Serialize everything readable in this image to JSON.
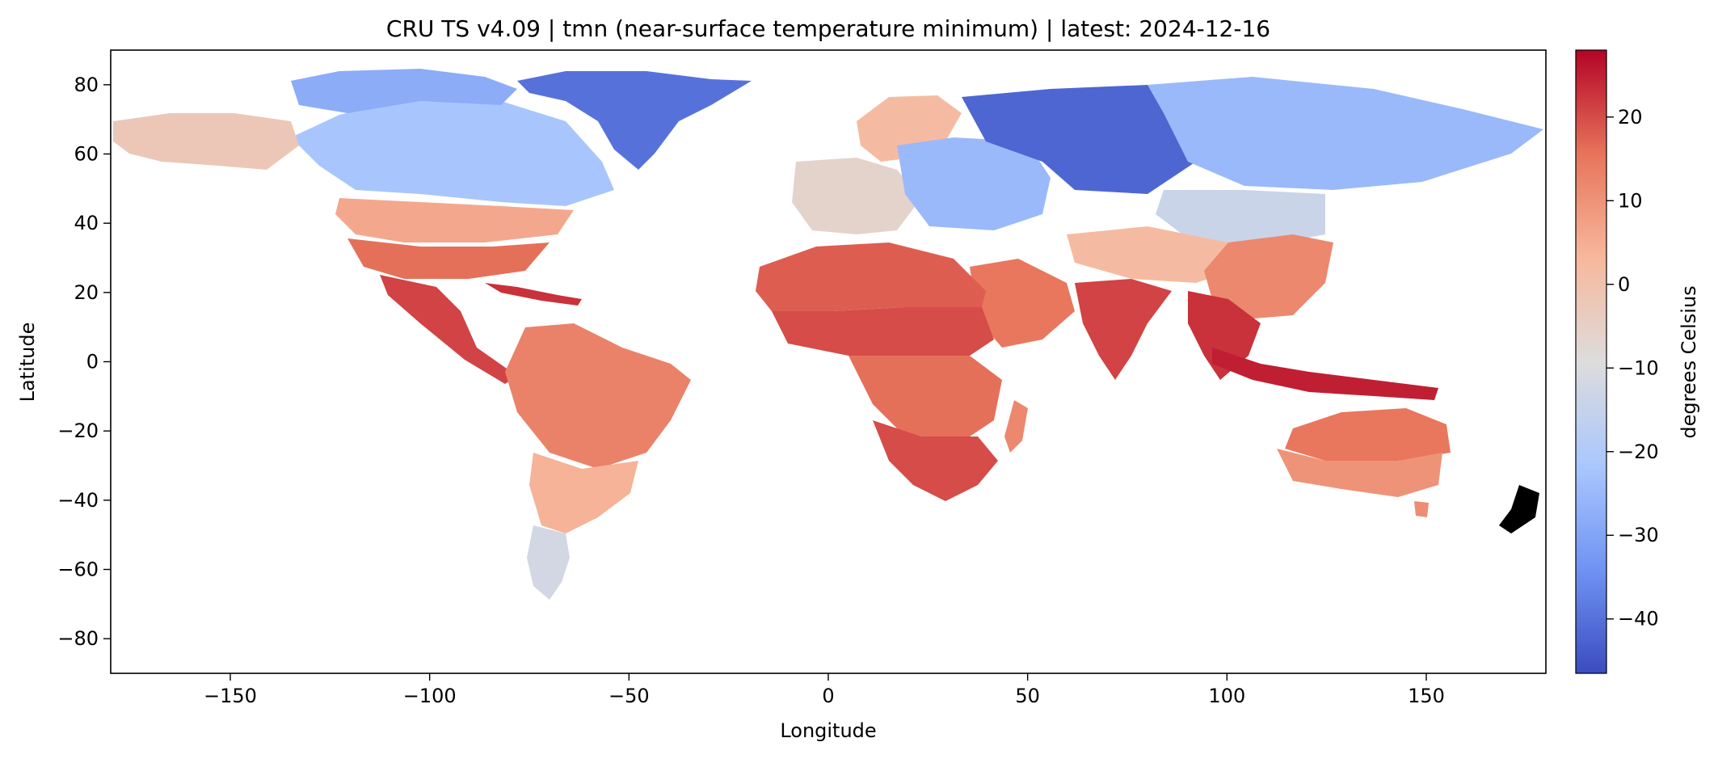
{
  "chart_data": {
    "type": "heatmap",
    "title": "CRU TS v4.09 | tmn (near-surface temperature minimum) | latest: 2024-12-16",
    "xlabel": "Longitude",
    "ylabel": "Latitude",
    "xlim": [
      -180,
      180
    ],
    "ylim": [
      -90,
      90
    ],
    "xticks": [
      -150,
      -100,
      -50,
      0,
      50,
      100,
      150
    ],
    "xtick_labels": [
      "−150",
      "−100",
      "−50",
      "0",
      "50",
      "100",
      "150"
    ],
    "yticks": [
      80,
      60,
      40,
      20,
      0,
      -20,
      -40,
      -60,
      -80
    ],
    "ytick_labels": [
      "80",
      "60",
      "40",
      "20",
      "0",
      "−20",
      "−40",
      "−60",
      "−80"
    ],
    "colorbar": {
      "label": "degrees Celsius",
      "cmap": "coolwarm",
      "range": [
        -46.5,
        28
      ],
      "ticks": [
        20,
        10,
        0,
        -10,
        -20,
        -30,
        -40
      ],
      "tick_labels": [
        "20",
        "10",
        "0",
        "−10",
        "−20",
        "−30",
        "−40"
      ],
      "colors": [
        "#3b4cc0",
        "#7093f3",
        "#aac7fd",
        "#dddcdc",
        "#f7b89c",
        "#e7745b",
        "#b40426"
      ]
    },
    "regions": [
      {
        "name": "Greenland",
        "value": -40
      },
      {
        "name": "Canadian Arctic",
        "value": -28
      },
      {
        "name": "Canada",
        "value": -20
      },
      {
        "name": "Alaska",
        "value": -22
      },
      {
        "name": "Central USA",
        "value": -2
      },
      {
        "name": "Southern USA",
        "value": 6
      },
      {
        "name": "Mexico and Central America",
        "value": 16
      },
      {
        "name": "Caribbean",
        "value": 21
      },
      {
        "name": "Amazon basin",
        "value": 23
      },
      {
        "name": "Southern South America",
        "value": 13
      },
      {
        "name": "Patagonia",
        "value": 4
      },
      {
        "name": "Scandinavia",
        "value": -12
      },
      {
        "name": "Western Europe",
        "value": 2
      },
      {
        "name": "Eastern Europe",
        "value": -6
      },
      {
        "name": "Western Siberia",
        "value": -25
      },
      {
        "name": "Eastern Siberia",
        "value": -42
      },
      {
        "name": "Mongolia",
        "value": -25
      },
      {
        "name": "Tibetan Plateau",
        "value": -14
      },
      {
        "name": "China",
        "value": 2
      },
      {
        "name": "Sahara",
        "value": 12
      },
      {
        "name": "Sahel",
        "value": 18
      },
      {
        "name": "Central Africa",
        "value": 20
      },
      {
        "name": "Southern Africa",
        "value": 16
      },
      {
        "name": "Madagascar",
        "value": 20
      },
      {
        "name": "Arabian Peninsula",
        "value": 12
      },
      {
        "name": "India",
        "value": 15
      },
      {
        "name": "Southeast Asia",
        "value": 21
      },
      {
        "name": "Indonesia",
        "value": 23
      },
      {
        "name": "Northern Australia",
        "value": 25
      },
      {
        "name": "Southern Australia",
        "value": 15
      },
      {
        "name": "Tasmania",
        "value": 10
      },
      {
        "name": "New Zealand",
        "value": 11
      }
    ]
  }
}
